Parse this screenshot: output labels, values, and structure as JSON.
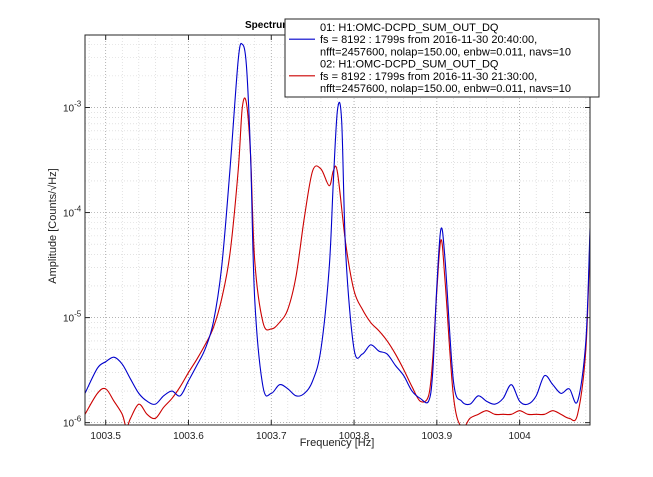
{
  "chart_data": {
    "type": "line",
    "title": "Spectrum",
    "xlabel": "Frequency [Hz]",
    "ylabel": "Amplitude [Counts/√Hz]",
    "xlim": [
      1003.475,
      1004.085
    ],
    "ylim": [
      9.5e-07,
      0.0049
    ],
    "yscale": "log",
    "grid": true,
    "legend_position": "top-right",
    "x_ticks": [
      1003.5,
      1003.6,
      1003.7,
      1003.8,
      1003.9,
      1004
    ],
    "x_tick_labels": [
      "1003.5",
      "1003.6",
      "1003.7",
      "1003.8",
      "1003.9",
      "1004"
    ],
    "y_ticks": [
      1e-06,
      1e-05,
      0.0001,
      0.001
    ],
    "y_tick_labels": [
      {
        "base": "10",
        "exp": "-6"
      },
      {
        "base": "10",
        "exp": "-5"
      },
      {
        "base": "10",
        "exp": "-4"
      },
      {
        "base": "10",
        "exp": "-3"
      }
    ],
    "series": [
      {
        "name": "01: H1:OMC-DCPD_SUM_OUT_DQ",
        "legend_lines": [
          "01: H1:OMC-DCPD_SUM_OUT_DQ",
          "fs = 8192 : 1799s from 2016-11-30 20:40:00,",
          "nfft=2457600, nolap=150.00, enbw=0.011, navs=10"
        ],
        "color": "#0000cc",
        "x": [
          1003.475,
          1003.49,
          1003.5,
          1003.51,
          1003.52,
          1003.53,
          1003.54,
          1003.55,
          1003.56,
          1003.57,
          1003.58,
          1003.59,
          1003.6,
          1003.61,
          1003.62,
          1003.63,
          1003.64,
          1003.65,
          1003.66,
          1003.665,
          1003.67,
          1003.675,
          1003.68,
          1003.69,
          1003.7,
          1003.71,
          1003.72,
          1003.73,
          1003.74,
          1003.75,
          1003.76,
          1003.77,
          1003.775,
          1003.78,
          1003.785,
          1003.79,
          1003.8,
          1003.81,
          1003.82,
          1003.83,
          1003.84,
          1003.85,
          1003.86,
          1003.87,
          1003.88,
          1003.89,
          1003.895,
          1003.9,
          1003.905,
          1003.91,
          1003.92,
          1003.93,
          1003.94,
          1003.95,
          1003.96,
          1003.97,
          1003.98,
          1003.99,
          1004.0,
          1004.01,
          1004.02,
          1004.03,
          1004.04,
          1004.05,
          1004.06,
          1004.07,
          1004.08,
          1004.085
        ],
        "y": [
          1.9e-06,
          3.3e-06,
          3.8e-06,
          4.2e-06,
          3.6e-06,
          2.6e-06,
          1.9e-06,
          1.6e-06,
          1.5e-06,
          1.8e-06,
          2e-06,
          1.8e-06,
          2.5e-06,
          3.5e-06,
          5e-06,
          9e-06,
          3e-05,
          0.00025,
          0.0028,
          0.004,
          0.0025,
          0.00035,
          1.5e-05,
          2.2e-06,
          1.9e-06,
          2.3e-06,
          2.1e-06,
          1.8e-06,
          1.9e-06,
          2.5e-06,
          5e-06,
          3e-05,
          0.0002,
          0.00095,
          0.00075,
          4e-05,
          5e-06,
          4.5e-06,
          5.5e-06,
          4.8e-06,
          4.5e-06,
          3.5e-06,
          2.8e-06,
          2e-06,
          1.7e-06,
          1.6e-06,
          3e-06,
          2e-05,
          7e-05,
          3.5e-05,
          2.5e-06,
          1.6e-06,
          1.5e-06,
          1.8e-06,
          1.6e-06,
          1.5e-06,
          1.7e-06,
          2.3e-06,
          1.6e-06,
          1.5e-06,
          1.8e-06,
          2.8e-06,
          2.3e-06,
          1.9e-06,
          2.1e-06,
          1.6e-06,
          6e-06,
          7e-05
        ]
      },
      {
        "name": "02: H1:OMC-DCPD_SUM_OUT_DQ",
        "legend_lines": [
          "02: H1:OMC-DCPD_SUM_OUT_DQ",
          "fs = 8192 : 1799s from 2016-11-30 21:30:00,",
          "nfft=2457600, nolap=150.00, enbw=0.011, navs=10"
        ],
        "color": "#cc0000",
        "x": [
          1003.475,
          1003.49,
          1003.5,
          1003.51,
          1003.52,
          1003.525,
          1003.53,
          1003.54,
          1003.55,
          1003.56,
          1003.57,
          1003.58,
          1003.59,
          1003.6,
          1003.61,
          1003.62,
          1003.63,
          1003.64,
          1003.65,
          1003.66,
          1003.665,
          1003.67,
          1003.675,
          1003.68,
          1003.69,
          1003.7,
          1003.71,
          1003.72,
          1003.73,
          1003.74,
          1003.75,
          1003.76,
          1003.77,
          1003.775,
          1003.78,
          1003.79,
          1003.8,
          1003.81,
          1003.82,
          1003.83,
          1003.84,
          1003.85,
          1003.86,
          1003.87,
          1003.88,
          1003.89,
          1003.895,
          1003.9,
          1003.905,
          1003.91,
          1003.92,
          1003.93,
          1003.94,
          1003.95,
          1003.96,
          1003.97,
          1003.98,
          1003.99,
          1004.0,
          1004.01,
          1004.02,
          1004.03,
          1004.04,
          1004.05,
          1004.06,
          1004.07,
          1004.08,
          1004.085
        ],
        "y": [
          1.2e-06,
          1.9e-06,
          2.1e-06,
          1.6e-06,
          1.2e-06,
          9e-07,
          1.1e-06,
          1.5e-06,
          1.2e-06,
          1.1e-06,
          1.4e-06,
          1.7e-06,
          2.2e-06,
          3e-06,
          4e-06,
          5.5e-06,
          8e-06,
          1.5e-05,
          4e-05,
          0.00025,
          0.001,
          0.0011,
          0.00035,
          3.5e-05,
          9e-06,
          7.8e-06,
          9e-06,
          1.2e-05,
          2.5e-05,
          9e-05,
          0.00025,
          0.00026,
          0.00018,
          0.00025,
          0.00024,
          5e-05,
          1.8e-05,
          1.2e-05,
          9e-06,
          7.5e-06,
          6e-06,
          4.5e-06,
          3.2e-06,
          2.2e-06,
          1.6e-06,
          1.8e-06,
          4e-06,
          1.8e-05,
          5.5e-05,
          2.2e-05,
          1.8e-06,
          9e-07,
          1.1e-06,
          1.2e-06,
          1.3e-06,
          1.2e-06,
          1.2e-06,
          1.2e-06,
          1.3e-06,
          1.2e-06,
          1.2e-06,
          1.2e-06,
          1.3e-06,
          1.2e-06,
          1.1e-06,
          1.2e-06,
          5e-06,
          6e-05
        ]
      }
    ]
  }
}
